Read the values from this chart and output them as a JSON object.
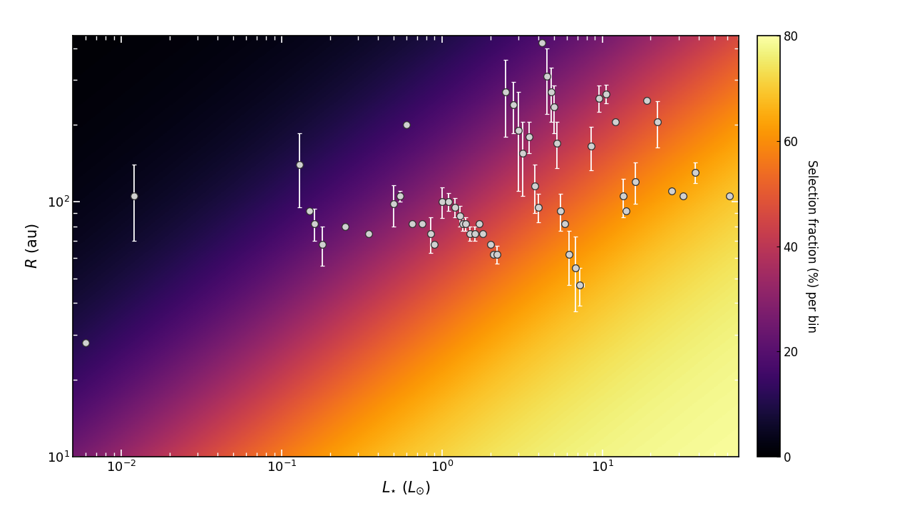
{
  "xlabel": "$L_{\\star}$ ($L_{\\odot}$)",
  "ylabel": "$R$ (au)",
  "cbar_label": "Selection fraction (%) per bin",
  "xlim_log": [
    -2.3,
    1.85
  ],
  "ylim_log": [
    1.0,
    2.65
  ],
  "cmap_vmin": 0,
  "cmap_vmax": 80,
  "data_points": [
    {
      "L": 0.006,
      "R": 28,
      "eR_lo": 0,
      "eR_hi": 0,
      "eL_lo": 0,
      "eL_hi": 0
    },
    {
      "L": 0.012,
      "R": 105,
      "eR_lo": 35,
      "eR_hi": 35,
      "eL_lo": 0,
      "eL_hi": 0
    },
    {
      "L": 0.13,
      "R": 140,
      "eR_lo": 45,
      "eR_hi": 45,
      "eL_lo": 0,
      "eL_hi": 0
    },
    {
      "L": 0.15,
      "R": 92,
      "eR_lo": 0,
      "eR_hi": 0,
      "eL_lo": 0,
      "eL_hi": 0
    },
    {
      "L": 0.16,
      "R": 82,
      "eR_lo": 12,
      "eR_hi": 12,
      "eL_lo": 0,
      "eL_hi": 0
    },
    {
      "L": 0.18,
      "R": 68,
      "eR_lo": 12,
      "eR_hi": 12,
      "eL_lo": 0,
      "eL_hi": 0
    },
    {
      "L": 0.25,
      "R": 80,
      "eR_lo": 0,
      "eR_hi": 0,
      "eL_lo": 0,
      "eL_hi": 0
    },
    {
      "L": 0.35,
      "R": 75,
      "eR_lo": 0,
      "eR_hi": 0,
      "eL_lo": 0,
      "eL_hi": 0
    },
    {
      "L": 0.5,
      "R": 98,
      "eR_lo": 18,
      "eR_hi": 18,
      "eL_lo": 0,
      "eL_hi": 0
    },
    {
      "L": 0.55,
      "R": 105,
      "eR_lo": 5,
      "eR_hi": 5,
      "eL_lo": 0,
      "eL_hi": 0
    },
    {
      "L": 0.6,
      "R": 200,
      "eR_lo": 0,
      "eR_hi": 0,
      "eL_lo": 0,
      "eL_hi": 0
    },
    {
      "L": 0.65,
      "R": 82,
      "eR_lo": 0,
      "eR_hi": 0,
      "eL_lo": 0,
      "eL_hi": 0
    },
    {
      "L": 0.75,
      "R": 82,
      "eR_lo": 0,
      "eR_hi": 0,
      "eL_lo": 0,
      "eL_hi": 0
    },
    {
      "L": 0.85,
      "R": 75,
      "eR_lo": 12,
      "eR_hi": 12,
      "eL_lo": 0,
      "eL_hi": 0
    },
    {
      "L": 0.9,
      "R": 68,
      "eR_lo": 0,
      "eR_hi": 0,
      "eL_lo": 0,
      "eL_hi": 0
    },
    {
      "L": 1.0,
      "R": 100,
      "eR_lo": 14,
      "eR_hi": 14,
      "eL_lo": 0,
      "eL_hi": 0
    },
    {
      "L": 1.1,
      "R": 100,
      "eR_lo": 8,
      "eR_hi": 8,
      "eL_lo": 0,
      "eL_hi": 0
    },
    {
      "L": 1.2,
      "R": 95,
      "eR_lo": 8,
      "eR_hi": 8,
      "eL_lo": 0,
      "eL_hi": 0
    },
    {
      "L": 1.3,
      "R": 88,
      "eR_lo": 8,
      "eR_hi": 8,
      "eL_lo": 0,
      "eL_hi": 0
    },
    {
      "L": 1.35,
      "R": 82,
      "eR_lo": 5,
      "eR_hi": 5,
      "eL_lo": 0,
      "eL_hi": 0
    },
    {
      "L": 1.4,
      "R": 82,
      "eR_lo": 5,
      "eR_hi": 5,
      "eL_lo": 0,
      "eL_hi": 0
    },
    {
      "L": 1.5,
      "R": 75,
      "eR_lo": 5,
      "eR_hi": 5,
      "eL_lo": 0,
      "eL_hi": 0
    },
    {
      "L": 1.6,
      "R": 75,
      "eR_lo": 5,
      "eR_hi": 5,
      "eL_lo": 0,
      "eL_hi": 0
    },
    {
      "L": 1.7,
      "R": 82,
      "eR_lo": 0,
      "eR_hi": 0,
      "eL_lo": 0,
      "eL_hi": 0
    },
    {
      "L": 1.8,
      "R": 75,
      "eR_lo": 0,
      "eR_hi": 0,
      "eL_lo": 0,
      "eL_hi": 0
    },
    {
      "L": 2.0,
      "R": 68,
      "eR_lo": 0,
      "eR_hi": 0,
      "eL_lo": 0,
      "eL_hi": 0
    },
    {
      "L": 2.1,
      "R": 62,
      "eR_lo": 0,
      "eR_hi": 0,
      "eL_lo": 0,
      "eL_hi": 0
    },
    {
      "L": 2.2,
      "R": 62,
      "eR_lo": 5,
      "eR_hi": 5,
      "eL_lo": 0,
      "eL_hi": 0
    },
    {
      "L": 2.5,
      "R": 270,
      "eR_lo": 90,
      "eR_hi": 90,
      "eL_lo": 0,
      "eL_hi": 0
    },
    {
      "L": 2.8,
      "R": 240,
      "eR_lo": 55,
      "eR_hi": 55,
      "eL_lo": 0,
      "eL_hi": 0
    },
    {
      "L": 3.0,
      "R": 190,
      "eR_lo": 80,
      "eR_hi": 80,
      "eL_lo": 0,
      "eL_hi": 0
    },
    {
      "L": 3.2,
      "R": 155,
      "eR_lo": 50,
      "eR_hi": 50,
      "eL_lo": 0,
      "eL_hi": 0
    },
    {
      "L": 3.5,
      "R": 180,
      "eR_lo": 25,
      "eR_hi": 25,
      "eL_lo": 0,
      "eL_hi": 0
    },
    {
      "L": 3.8,
      "R": 115,
      "eR_lo": 25,
      "eR_hi": 25,
      "eL_lo": 0,
      "eL_hi": 0
    },
    {
      "L": 4.0,
      "R": 95,
      "eR_lo": 12,
      "eR_hi": 12,
      "eL_lo": 0,
      "eL_hi": 0
    },
    {
      "L": 4.2,
      "R": 420,
      "eR_lo": 0,
      "eR_hi": 0,
      "eL_lo": 0,
      "eL_hi": 0
    },
    {
      "L": 4.5,
      "R": 310,
      "eR_lo": 90,
      "eR_hi": 90,
      "eL_lo": 0,
      "eL_hi": 0
    },
    {
      "L": 4.8,
      "R": 270,
      "eR_lo": 65,
      "eR_hi": 65,
      "eL_lo": 0,
      "eL_hi": 0
    },
    {
      "L": 5.0,
      "R": 235,
      "eR_lo": 50,
      "eR_hi": 50,
      "eL_lo": 0,
      "eL_hi": 0
    },
    {
      "L": 5.2,
      "R": 170,
      "eR_lo": 35,
      "eR_hi": 35,
      "eL_lo": 0,
      "eL_hi": 0
    },
    {
      "L": 5.5,
      "R": 92,
      "eR_lo": 15,
      "eR_hi": 15,
      "eL_lo": 0,
      "eL_hi": 0
    },
    {
      "L": 5.8,
      "R": 82,
      "eR_lo": 0,
      "eR_hi": 0,
      "eL_lo": 0,
      "eL_hi": 0
    },
    {
      "L": 6.2,
      "R": 62,
      "eR_lo": 15,
      "eR_hi": 15,
      "eL_lo": 0,
      "eL_hi": 0
    },
    {
      "L": 6.8,
      "R": 55,
      "eR_lo": 18,
      "eR_hi": 18,
      "eL_lo": 0,
      "eL_hi": 0
    },
    {
      "L": 7.2,
      "R": 47,
      "eR_lo": 8,
      "eR_hi": 8,
      "eL_lo": 0.5,
      "eL_hi": 0.5
    },
    {
      "L": 8.5,
      "R": 165,
      "eR_lo": 32,
      "eR_hi": 32,
      "eL_lo": 0,
      "eL_hi": 0
    },
    {
      "L": 9.5,
      "R": 255,
      "eR_lo": 30,
      "eR_hi": 30,
      "eL_lo": 0,
      "eL_hi": 0
    },
    {
      "L": 10.5,
      "R": 265,
      "eR_lo": 22,
      "eR_hi": 22,
      "eL_lo": 0,
      "eL_hi": 0
    },
    {
      "L": 12.0,
      "R": 205,
      "eR_lo": 0,
      "eR_hi": 0,
      "eL_lo": 0,
      "eL_hi": 0
    },
    {
      "L": 13.5,
      "R": 105,
      "eR_lo": 18,
      "eR_hi": 18,
      "eL_lo": 0,
      "eL_hi": 0
    },
    {
      "L": 14.0,
      "R": 92,
      "eR_lo": 0,
      "eR_hi": 0,
      "eL_lo": 0,
      "eL_hi": 0
    },
    {
      "L": 16.0,
      "R": 120,
      "eR_lo": 22,
      "eR_hi": 22,
      "eL_lo": 0,
      "eL_hi": 0
    },
    {
      "L": 19.0,
      "R": 250,
      "eR_lo": 0,
      "eR_hi": 0,
      "eL_lo": 0,
      "eL_hi": 0
    },
    {
      "L": 22.0,
      "R": 205,
      "eR_lo": 42,
      "eR_hi": 42,
      "eL_lo": 0,
      "eL_hi": 0
    },
    {
      "L": 27.0,
      "R": 110,
      "eR_lo": 0,
      "eR_hi": 0,
      "eL_lo": 0,
      "eL_hi": 0
    },
    {
      "L": 32.0,
      "R": 105,
      "eR_lo": 0,
      "eR_hi": 0,
      "eL_lo": 0,
      "eL_hi": 0
    },
    {
      "L": 38.0,
      "R": 130,
      "eR_lo": 12,
      "eR_hi": 12,
      "eL_lo": 0,
      "eL_hi": 0
    },
    {
      "L": 62.0,
      "R": 105,
      "eR_lo": 0,
      "eR_hi": 0,
      "eL_lo": 0,
      "eL_hi": 0
    }
  ]
}
